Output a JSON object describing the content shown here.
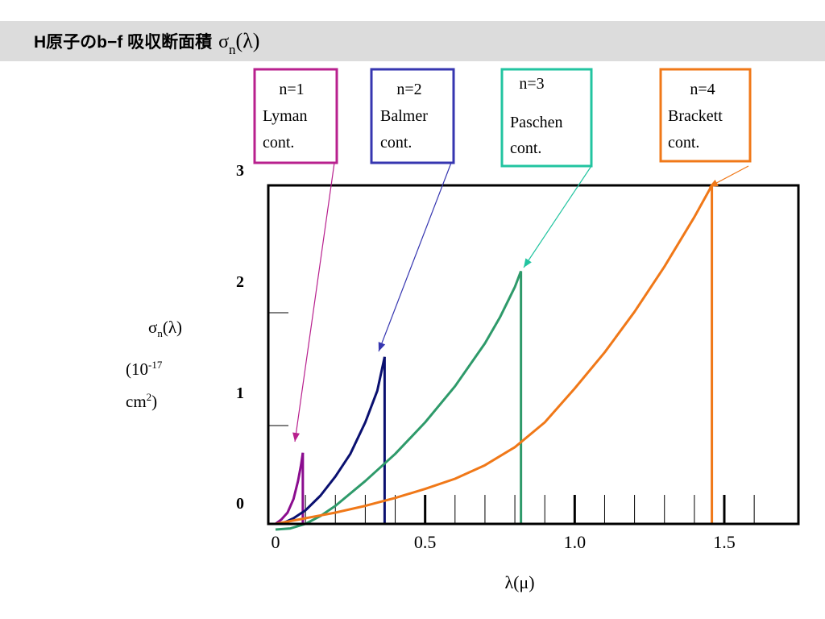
{
  "header": {
    "title_prefix": "H原子のb−f 吸収断面積",
    "title_symbol": "σ",
    "title_subscript": "n",
    "title_arg": "(λ)"
  },
  "colors": {
    "header_bg": "#dcdcdc",
    "lyman": "#8b0d8f",
    "balmer": "#0a1070",
    "paschen": "#2e9a6a",
    "brackett": "#f07818",
    "box_lyman": "#b8208e",
    "box_balmer": "#3636b0",
    "box_paschen": "#22c4a0",
    "box_brackett": "#f07818"
  },
  "chart_data": {
    "type": "line",
    "title": "H原子のb−f 吸収断面積 σn(λ)",
    "xlabel": "λ(μ)",
    "ylabel_symbol": "σ",
    "ylabel_subscript": "n",
    "ylabel_arg": "(λ)",
    "ylabel_unit_open": "(10",
    "ylabel_unit_exp": "-17",
    "ylabel_unit_cm": "cm",
    "ylabel_unit_cm_exp": "2",
    "ylabel_unit_close": ")",
    "xlim": [
      0,
      1.75
    ],
    "ylim": [
      0,
      3
    ],
    "x_ticks": [
      {
        "value": 0,
        "label": "0"
      },
      {
        "value": 0.5,
        "label": "0.5"
      },
      {
        "value": 1.0,
        "label": "1.0"
      },
      {
        "value": 1.5,
        "label": "1.5"
      }
    ],
    "y_ticks": [
      {
        "value": 0,
        "label": "0"
      },
      {
        "value": 1,
        "label": "1"
      },
      {
        "value": 2,
        "label": "2"
      },
      {
        "value": 3,
        "label": "3"
      }
    ],
    "minor_x_tick_step": 0.1,
    "series": [
      {
        "key": "lyman",
        "edge": 0.0912,
        "peak": 0.63,
        "points": [
          [
            0.0,
            0.0
          ],
          [
            0.02,
            0.04
          ],
          [
            0.04,
            0.1
          ],
          [
            0.06,
            0.22
          ],
          [
            0.075,
            0.38
          ],
          [
            0.085,
            0.52
          ],
          [
            0.0912,
            0.63
          ]
        ]
      },
      {
        "key": "balmer",
        "edge": 0.3646,
        "peak": 1.48,
        "points": [
          [
            0.02,
            0.0
          ],
          [
            0.06,
            0.05
          ],
          [
            0.1,
            0.12
          ],
          [
            0.15,
            0.25
          ],
          [
            0.2,
            0.42
          ],
          [
            0.25,
            0.62
          ],
          [
            0.3,
            0.9
          ],
          [
            0.34,
            1.18
          ],
          [
            0.3646,
            1.48
          ]
        ]
      },
      {
        "key": "paschen",
        "edge": 0.8204,
        "peak": 2.24,
        "points": [
          [
            0.0,
            -0.05
          ],
          [
            0.05,
            -0.04
          ],
          [
            0.1,
            0.0
          ],
          [
            0.15,
            0.07
          ],
          [
            0.2,
            0.16
          ],
          [
            0.3,
            0.38
          ],
          [
            0.4,
            0.62
          ],
          [
            0.5,
            0.9
          ],
          [
            0.6,
            1.22
          ],
          [
            0.7,
            1.6
          ],
          [
            0.75,
            1.83
          ],
          [
            0.8,
            2.1
          ],
          [
            0.8204,
            2.24
          ]
        ]
      },
      {
        "key": "brackett",
        "edge": 1.4585,
        "peak": 3.0,
        "points": [
          [
            0.0,
            0.0
          ],
          [
            0.1,
            0.05
          ],
          [
            0.2,
            0.1
          ],
          [
            0.3,
            0.16
          ],
          [
            0.4,
            0.23
          ],
          [
            0.5,
            0.31
          ],
          [
            0.6,
            0.4
          ],
          [
            0.7,
            0.52
          ],
          [
            0.8,
            0.68
          ],
          [
            0.9,
            0.9
          ],
          [
            1.0,
            1.2
          ],
          [
            1.1,
            1.52
          ],
          [
            1.2,
            1.88
          ],
          [
            1.3,
            2.28
          ],
          [
            1.4,
            2.72
          ],
          [
            1.4585,
            3.0
          ]
        ]
      }
    ],
    "annotations": [
      {
        "key": "lyman",
        "lines": [
          "n=1",
          "Lyman",
          "cont."
        ]
      },
      {
        "key": "balmer",
        "lines": [
          "n=2",
          "Balmer",
          "cont."
        ]
      },
      {
        "key": "paschen",
        "lines": [
          "n=3",
          "Paschen",
          "cont."
        ]
      },
      {
        "key": "brackett",
        "lines": [
          "n=4",
          "Brackett",
          "cont."
        ]
      }
    ]
  }
}
